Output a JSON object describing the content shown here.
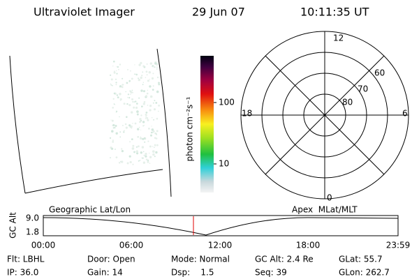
{
  "header": {
    "title": "Ultraviolet Imager",
    "date": "29 Jun 07",
    "time": "10:11:35 UT"
  },
  "colorbar": {
    "label": "photon cm⁻²s⁻¹",
    "ticks": [
      "100",
      "10"
    ]
  },
  "polar": {
    "labels": [
      "12",
      "18",
      "6",
      "0",
      "60",
      "70",
      "80"
    ]
  },
  "timeline": {
    "y_label": "GC Alt",
    "y_ticks": [
      "9.0",
      "1.8"
    ],
    "left_title": "Geographic Lat/Lon",
    "right_title": "Apex  MLat/MLT",
    "x_ticks": [
      "00:00",
      "06:00",
      "12:00",
      "18:00",
      "23:59"
    ]
  },
  "footer": {
    "rows": [
      [
        "Flt: LBHL",
        "Door: Open",
        "Mode: Normal",
        "GC Alt: 2.4 Re",
        "GLat: 55.7"
      ],
      [
        "IP: 36.0",
        "Gain: 14",
        "Dsp:    1.5",
        "Seq: 39",
        "GLon: 262.7"
      ]
    ]
  }
}
